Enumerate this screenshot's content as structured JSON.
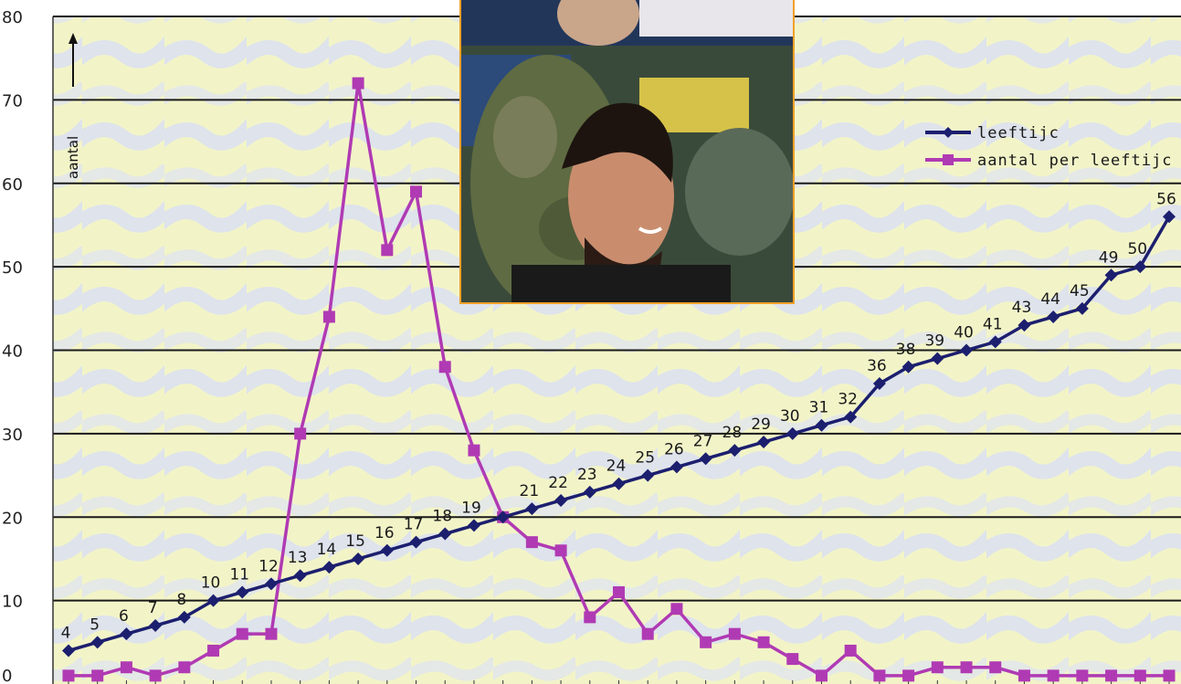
{
  "chart_data": {
    "type": "line",
    "title": "",
    "ylabel": "aantal",
    "xlabel": "",
    "ylim": [
      0,
      80
    ],
    "y_ticks": [
      "0",
      "10",
      "20",
      "30",
      "40",
      "50",
      "60",
      "70",
      "80"
    ],
    "grid": true,
    "legend_position": "top-right",
    "series": [
      {
        "name": "leeftijd",
        "display_name": "leeftijc",
        "color": "#1c1f6e",
        "marker": "diamond",
        "values": [
          4,
          5,
          6,
          7,
          8,
          10,
          11,
          12,
          13,
          14,
          15,
          16,
          17,
          18,
          19,
          20,
          21,
          22,
          23,
          24,
          25,
          26,
          27,
          28,
          29,
          30,
          31,
          32,
          36,
          38,
          39,
          40,
          41,
          43,
          44,
          45,
          49,
          50,
          56
        ],
        "labels": [
          "4",
          "5",
          "6",
          "7",
          "8",
          "10",
          "11",
          "12",
          "13",
          "14",
          "15",
          "16",
          "17",
          "18",
          "19",
          "",
          "21",
          "22",
          "23",
          "24",
          "25",
          "26",
          "27",
          "28",
          "29",
          "30",
          "31",
          "32",
          "36",
          "38",
          "39",
          "40",
          "41",
          "43",
          "44",
          "45",
          "49",
          "50",
          "56"
        ]
      },
      {
        "name": "aantal per leeftijd",
        "display_name": "aantal per leeftijc",
        "color": "#b03ab3",
        "marker": "square",
        "values": [
          1,
          1,
          2,
          1,
          2,
          4,
          6,
          6,
          30,
          44,
          72,
          52,
          59,
          38,
          28,
          20,
          17,
          16,
          8,
          11,
          6,
          9,
          5,
          6,
          5,
          3,
          1,
          4,
          1,
          1,
          2,
          2,
          2,
          1,
          1,
          1,
          1,
          1,
          1
        ]
      }
    ]
  },
  "photo": {
    "subject": "smiling-man-carrying-child-photo"
  }
}
